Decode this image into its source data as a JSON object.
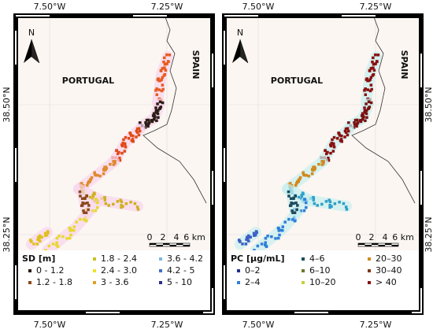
{
  "panels": [
    {
      "lon_top": [
        "7.50°W",
        "7.25°W"
      ],
      "lon_bottom": [
        "7.50°W",
        "7.25°W"
      ],
      "lat": [
        "38.50°N",
        "38.25°N"
      ],
      "north": "N",
      "country_left": "PORTUGAL",
      "country_right": "SPAIN",
      "scale": [
        "0",
        "2",
        "4",
        "6 km"
      ],
      "legend": {
        "title": "SD [m]",
        "columns": [
          [
            {
              "label": "0 - 1.2",
              "color": "#2b1d16"
            },
            {
              "label": "1.2 - 1.8",
              "color": "#8b4a1c"
            }
          ],
          [
            {
              "label": "1.8 - 2.4",
              "color": "#c9c21e"
            },
            {
              "label": "2.4 - 3.0",
              "color": "#efe22a"
            },
            {
              "label": "3 - 3.6",
              "color": "#e0a020"
            }
          ],
          [
            {
              "label": "3.6 - 4.2",
              "color": "#7fb6e0"
            },
            {
              "label": "4.2 - 5",
              "color": "#3d6fc4"
            },
            {
              "label": "5 - 10",
              "color": "#2a2f8a"
            }
          ]
        ]
      }
    },
    {
      "lon_top": [
        "7.50°W",
        "7.25°W"
      ],
      "lon_bottom": [
        "7.50°W",
        "7.25°W"
      ],
      "lat": [
        "38.50°N",
        "38.25°N"
      ],
      "north": "N",
      "country_left": "PORTUGAL",
      "country_right": "SPAIN",
      "scale": [
        "0",
        "2",
        "4",
        "6 km"
      ],
      "legend": {
        "title": "PC [µg/mL]",
        "columns": [
          [
            {
              "label": "0–2",
              "color": "#23308a"
            },
            {
              "label": "2–4",
              "color": "#2f7fd8"
            }
          ],
          [
            {
              "label": "4–6",
              "color": "#1e4c5c"
            },
            {
              "label": "6–10",
              "color": "#6a7a2a"
            },
            {
              "label": "10–20",
              "color": "#c8d040"
            }
          ],
          [
            {
              "label": "20–30",
              "color": "#d08a20"
            },
            {
              "label": "30–40",
              "color": "#7a3a14"
            },
            {
              "label": "> 40",
              "color": "#8a1010"
            }
          ]
        ]
      }
    }
  ]
}
